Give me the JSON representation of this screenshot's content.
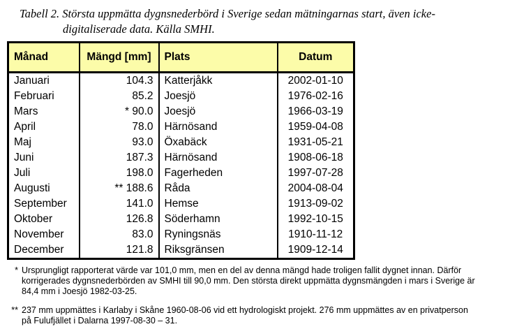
{
  "page": {
    "background": "#ffffff"
  },
  "caption": {
    "line1": "Tabell 2. Största uppmätta dygnsnederbörd i Sverige sedan mätningarnas start, även icke-",
    "line2": "digitaliserade data. Källa SMHI."
  },
  "table": {
    "header_bg": "#fcfca9",
    "border_color": "#000000",
    "headers": [
      "Månad",
      "Mängd [mm]",
      "Plats",
      "Datum"
    ],
    "header_align": [
      "a-left",
      "a-center",
      "a-left",
      "a-center"
    ],
    "cell_align": [
      "a-left",
      "a-right",
      "a-left",
      "a-center"
    ],
    "rows": [
      [
        "Januari",
        "104.3",
        "Katterjåkk",
        "2002-01-10"
      ],
      [
        "Februari",
        "85.2",
        "Joesjö",
        "1976-02-16"
      ],
      [
        "Mars",
        "* 90.0",
        "Joesjö",
        "1966-03-19"
      ],
      [
        "April",
        "78.0",
        "Härnösand",
        "1959-04-08"
      ],
      [
        "Maj",
        "93.0",
        "Öxabäck",
        "1931-05-21"
      ],
      [
        "Juni",
        "187.3",
        "Härnösand",
        "1908-06-18"
      ],
      [
        "Juli",
        "198.0",
        "Fagerheden",
        "1997-07-28"
      ],
      [
        "Augusti",
        "** 188.6",
        "Råda",
        "2004-08-04"
      ],
      [
        "September",
        "141.0",
        "Hemse",
        "1913-09-02"
      ],
      [
        "Oktober",
        "126.8",
        "Söderhamn",
        "1992-10-15"
      ],
      [
        "November",
        "83.0",
        "Ryningsnäs",
        "1910-11-12"
      ],
      [
        "December",
        "121.8",
        "Riksgränsen",
        "1909-12-14"
      ]
    ]
  },
  "footnotes": [
    {
      "marker": "*",
      "lines": [
        "Ursprungligt rapporterat värde var 101,0 mm, men en del av denna mängd hade troligen fallit dygnet innan. Därför",
        "korrigerades dygnsnederbörden av SMHI till 90,0 mm. Den största direkt uppmätta dygnsmängden i mars i Sverige är",
        "84,4 mm i Joesjö 1982-03-25."
      ]
    },
    {
      "marker": "**",
      "lines": [
        "237 mm uppmättes i Karlaby i Skåne 1960-08-06 vid ett hydrologiskt projekt. 276 mm uppmättes av en privatperson",
        "på Fulufjället i Dalarna 1997-08-30 – 31."
      ]
    }
  ]
}
